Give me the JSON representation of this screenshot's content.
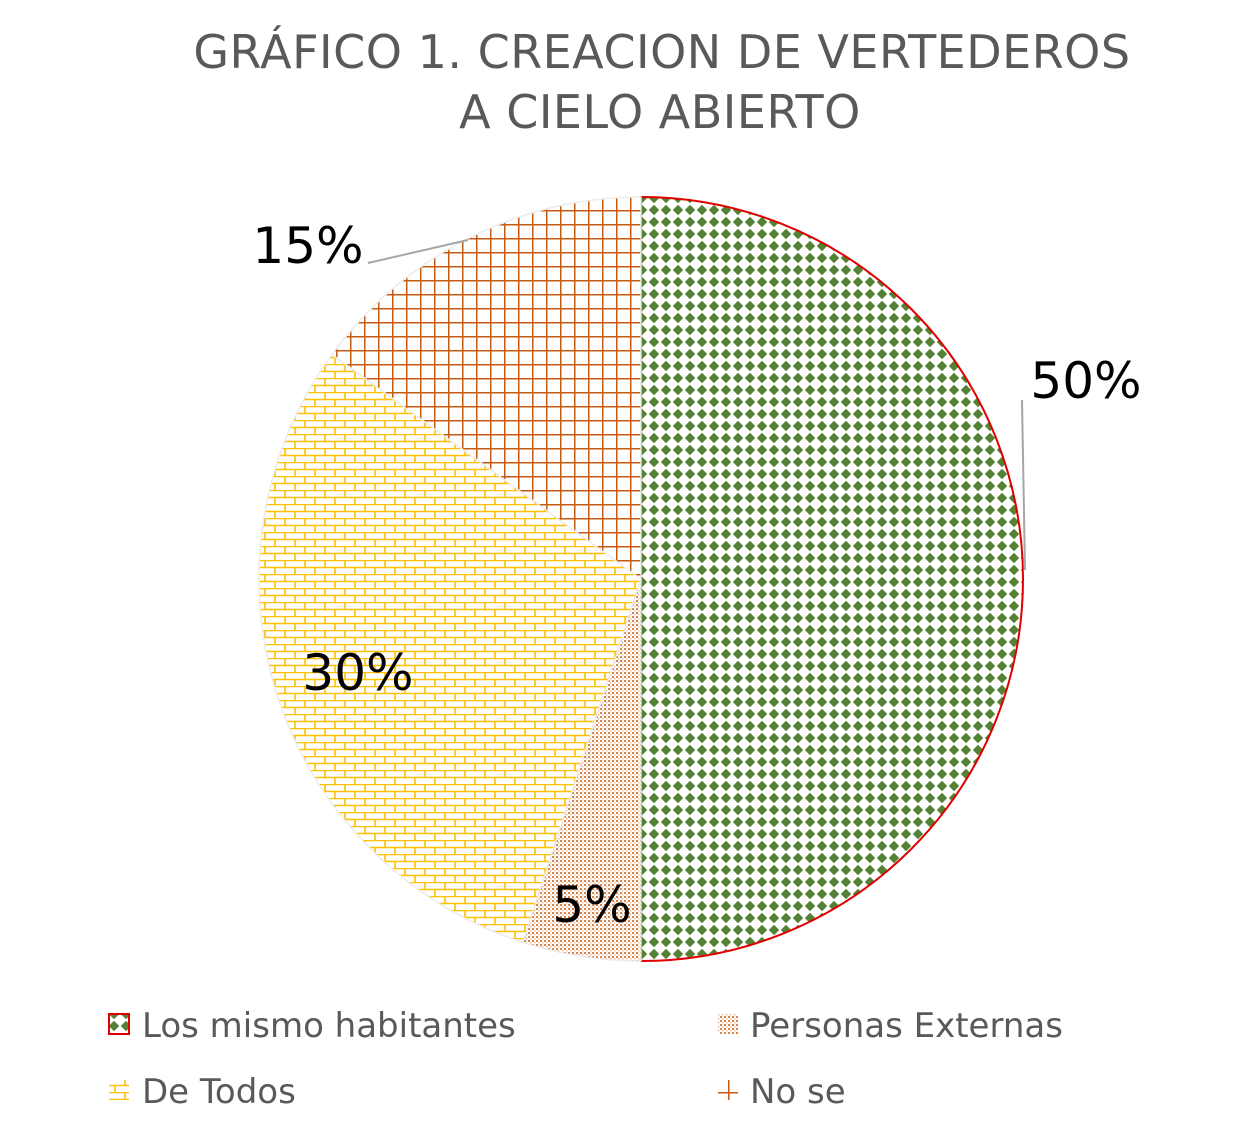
{
  "chart_data": {
    "type": "pie",
    "title_lines": [
      "GRÁFICO 1. CREACION DE VERTEDEROS",
      "A CIELO ABIERTO"
    ],
    "categories": [
      "Los mismo habitantes",
      "Personas Externas",
      "De Todos",
      "No se"
    ],
    "values": [
      50,
      5,
      30,
      15
    ],
    "value_labels": [
      "50%",
      "5%",
      "30%",
      "15%"
    ],
    "colors": [
      "#548235",
      "#C55A11",
      "#FFC000",
      "#C55A11"
    ],
    "start_angle": "12 o'clock",
    "direction": "clockwise",
    "legend_position": "bottom"
  }
}
